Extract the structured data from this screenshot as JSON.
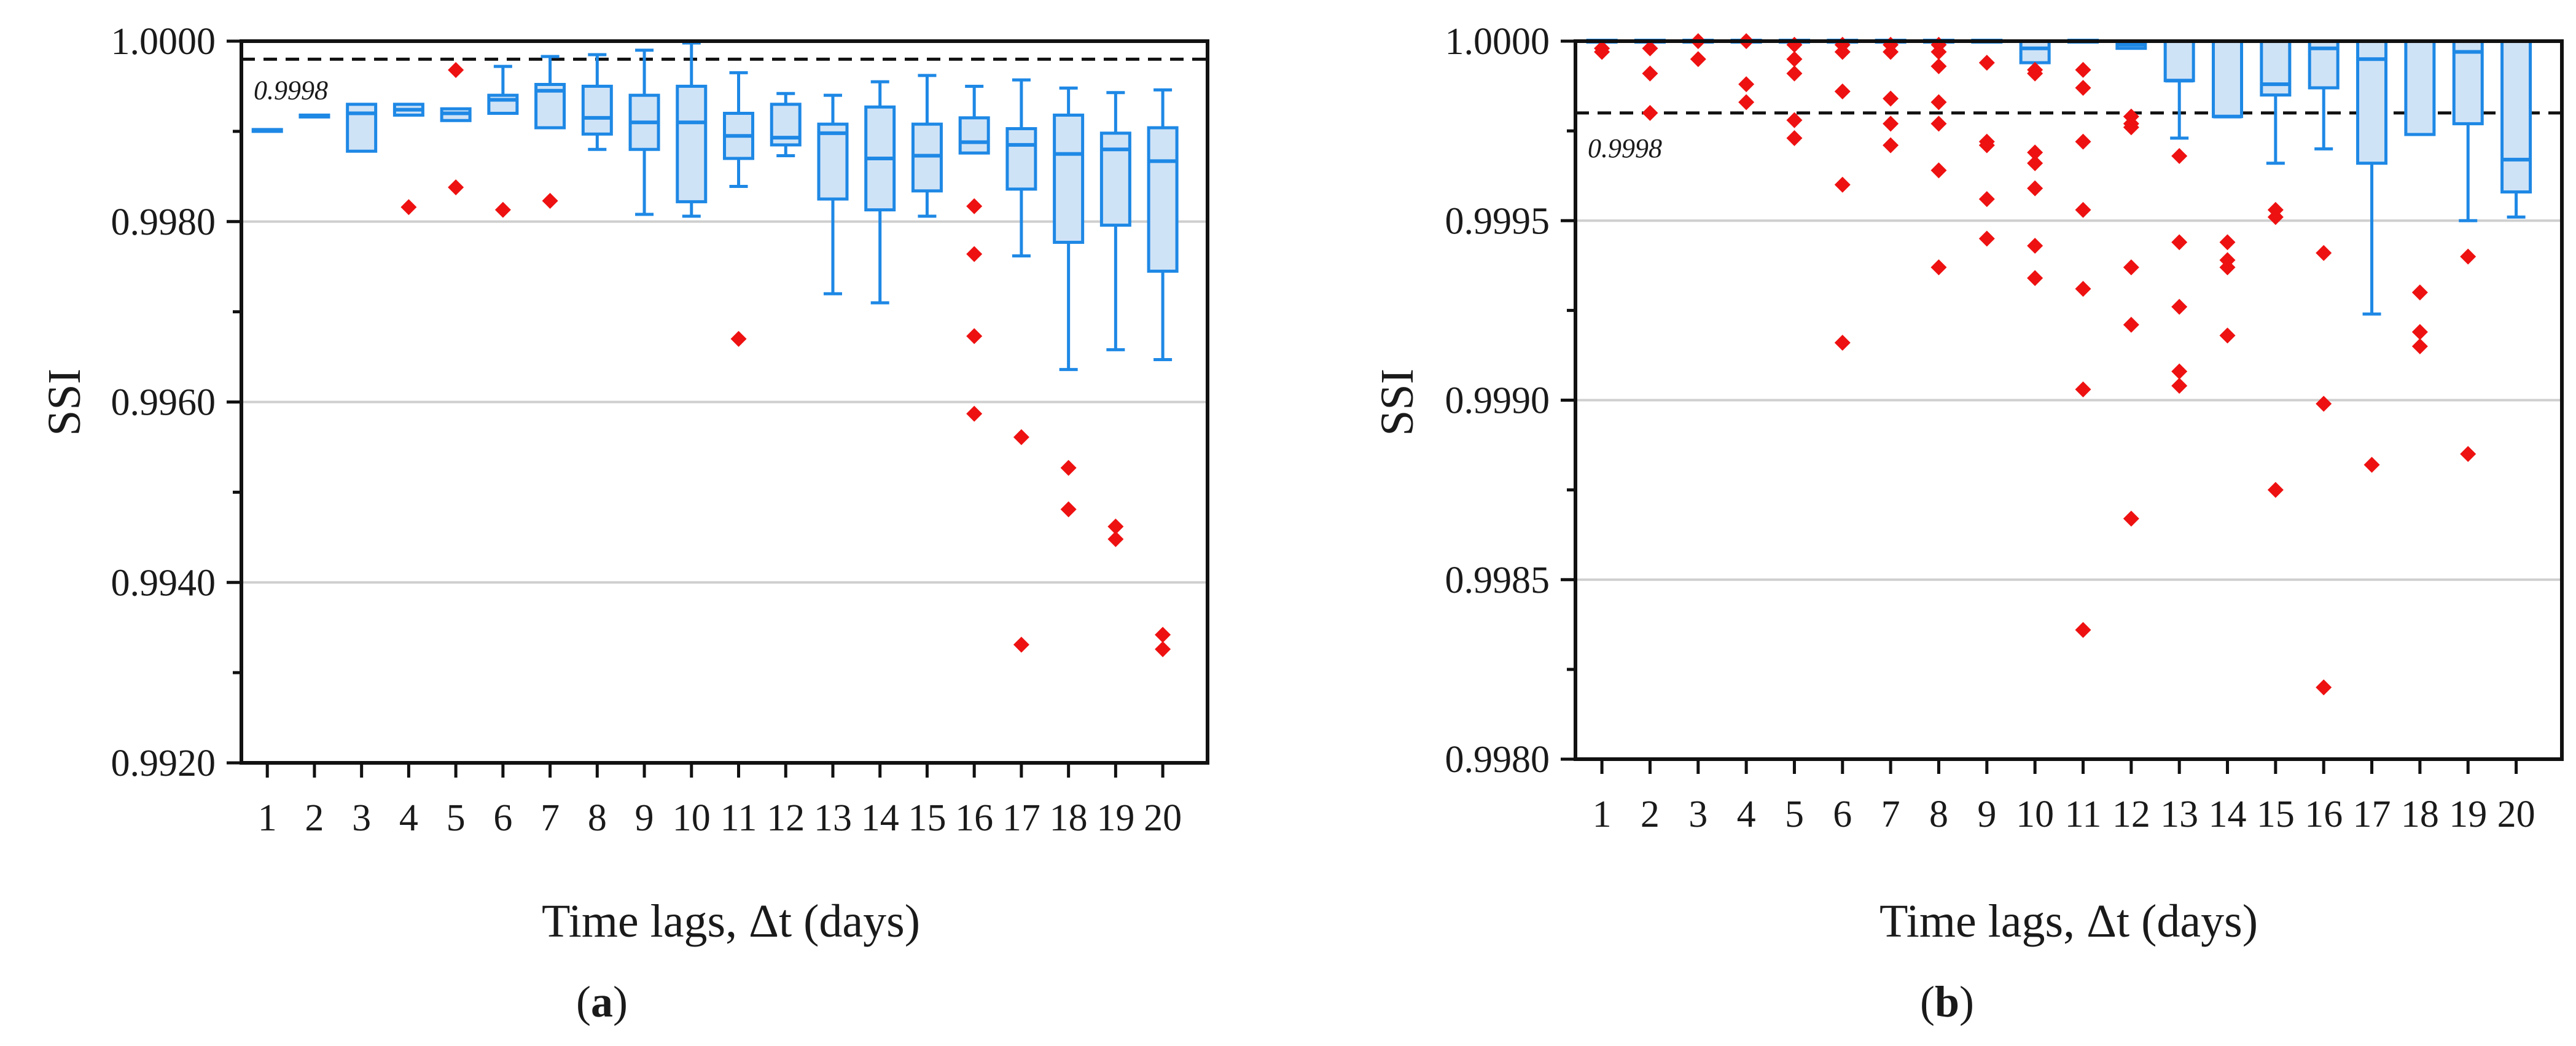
{
  "chart_data": [
    {
      "panel": "(a)",
      "type": "box",
      "ylabel": "SSI",
      "xlabel": "Time lags, Δt (days)",
      "ylim": [
        0.992,
        1.0
      ],
      "yticks": [
        "0.9920",
        "0.9940",
        "0.9960",
        "0.9980",
        "1.0000"
      ],
      "ytick_values": [
        0.992,
        0.994,
        0.996,
        0.998,
        1.0
      ],
      "reference": {
        "value": 0.9998,
        "label": "0.9998"
      },
      "categories": [
        "1",
        "2",
        "3",
        "4",
        "5",
        "6",
        "7",
        "8",
        "9",
        "10",
        "11",
        "12",
        "13",
        "14",
        "15",
        "16",
        "17",
        "18",
        "19",
        "20"
      ],
      "boxes": [
        {
          "q1": 0.99901,
          "median": 0.99901,
          "q3": 0.99901,
          "wlo": 0.99901,
          "whi": 0.99901,
          "outliers": []
        },
        {
          "q1": 0.99917,
          "median": 0.99917,
          "q3": 0.99917,
          "wlo": 0.99917,
          "whi": 0.99917,
          "outliers": []
        },
        {
          "q1": 0.99878,
          "median": 0.9992,
          "q3": 0.9993,
          "wlo": 0.99878,
          "whi": 0.9993,
          "outliers": []
        },
        {
          "q1": 0.99918,
          "median": 0.99924,
          "q3": 0.9993,
          "wlo": 0.99918,
          "whi": 0.9993,
          "outliers": [
            0.99816
          ]
        },
        {
          "q1": 0.99912,
          "median": 0.9992,
          "q3": 0.99925,
          "wlo": 0.99912,
          "whi": 0.99925,
          "outliers": [
            0.99838,
            0.99968
          ]
        },
        {
          "q1": 0.9992,
          "median": 0.99935,
          "q3": 0.9994,
          "wlo": 0.9992,
          "whi": 0.99972,
          "outliers": [
            0.99813
          ]
        },
        {
          "q1": 0.99904,
          "median": 0.99945,
          "q3": 0.99952,
          "wlo": 0.99904,
          "whi": 0.99983,
          "outliers": [
            0.99823
          ]
        },
        {
          "q1": 0.99897,
          "median": 0.99915,
          "q3": 0.9995,
          "wlo": 0.9988,
          "whi": 0.99985,
          "outliers": []
        },
        {
          "q1": 0.9988,
          "median": 0.9991,
          "q3": 0.9994,
          "wlo": 0.99808,
          "whi": 0.9999,
          "outliers": []
        },
        {
          "q1": 0.99822,
          "median": 0.9991,
          "q3": 0.9995,
          "wlo": 0.99806,
          "whi": 0.99998,
          "outliers": []
        },
        {
          "q1": 0.9987,
          "median": 0.99895,
          "q3": 0.9992,
          "wlo": 0.99839,
          "whi": 0.99965,
          "outliers": [
            0.9967
          ]
        },
        {
          "q1": 0.99885,
          "median": 0.99893,
          "q3": 0.9993,
          "wlo": 0.99873,
          "whi": 0.99942,
          "outliers": []
        },
        {
          "q1": 0.99825,
          "median": 0.99898,
          "q3": 0.99908,
          "wlo": 0.9972,
          "whi": 0.9994,
          "outliers": []
        },
        {
          "q1": 0.99813,
          "median": 0.9987,
          "q3": 0.99927,
          "wlo": 0.9971,
          "whi": 0.99955,
          "outliers": []
        },
        {
          "q1": 0.99834,
          "median": 0.99873,
          "q3": 0.99908,
          "wlo": 0.99806,
          "whi": 0.99962,
          "outliers": []
        },
        {
          "q1": 0.99876,
          "median": 0.99888,
          "q3": 0.99915,
          "wlo": 0.99876,
          "whi": 0.9995,
          "outliers": [
            0.99817,
            0.99764,
            0.99673,
            0.99587
          ]
        },
        {
          "q1": 0.99836,
          "median": 0.99885,
          "q3": 0.99903,
          "wlo": 0.99762,
          "whi": 0.99957,
          "outliers": [
            0.99561,
            0.99331
          ]
        },
        {
          "q1": 0.99777,
          "median": 0.99875,
          "q3": 0.99918,
          "wlo": 0.99636,
          "whi": 0.99948,
          "outliers": [
            0.99527,
            0.99481
          ]
        },
        {
          "q1": 0.99796,
          "median": 0.9988,
          "q3": 0.99898,
          "wlo": 0.99658,
          "whi": 0.99943,
          "outliers": [
            0.99462,
            0.99448
          ]
        },
        {
          "q1": 0.99745,
          "median": 0.99867,
          "q3": 0.99904,
          "wlo": 0.99647,
          "whi": 0.99946,
          "outliers": [
            0.99342,
            0.99326
          ]
        }
      ]
    },
    {
      "panel": "(b)",
      "type": "box",
      "ylabel": "SSI",
      "xlabel": "Time lags, Δt (days)",
      "ylim": [
        0.998,
        1.0
      ],
      "yticks": [
        "0.9980",
        "0.9985",
        "0.9990",
        "0.9995",
        "1.0000"
      ],
      "ytick_values": [
        0.998,
        0.9985,
        0.999,
        0.9995,
        1.0
      ],
      "reference": {
        "value": 0.9998,
        "label": "0.9998"
      },
      "categories": [
        "1",
        "2",
        "3",
        "4",
        "5",
        "6",
        "7",
        "8",
        "9",
        "10",
        "11",
        "12",
        "13",
        "14",
        "15",
        "16",
        "17",
        "18",
        "19",
        "20"
      ],
      "boxes": [
        {
          "q1": 1.0,
          "median": 1.0,
          "q3": 1.0,
          "wlo": 1.0,
          "whi": 1.0,
          "outliers": [
            0.99998,
            0.99997
          ]
        },
        {
          "q1": 1.0,
          "median": 1.0,
          "q3": 1.0,
          "wlo": 1.0,
          "whi": 1.0,
          "outliers": [
            0.99998,
            0.99991,
            0.9998
          ]
        },
        {
          "q1": 1.0,
          "median": 1.0,
          "q3": 1.0,
          "wlo": 1.0,
          "whi": 1.0,
          "outliers": [
            1.0,
            0.99995
          ]
        },
        {
          "q1": 1.0,
          "median": 1.0,
          "q3": 1.0,
          "wlo": 1.0,
          "whi": 1.0,
          "outliers": [
            1.0,
            0.99988,
            0.99983
          ]
        },
        {
          "q1": 1.0,
          "median": 1.0,
          "q3": 1.0,
          "wlo": 1.0,
          "whi": 1.0,
          "outliers": [
            0.99999,
            0.99995,
            0.99991,
            0.99978,
            0.99973
          ]
        },
        {
          "q1": 1.0,
          "median": 1.0,
          "q3": 1.0,
          "wlo": 1.0,
          "whi": 1.0,
          "outliers": [
            0.99999,
            0.99997,
            0.99986,
            0.9996,
            0.99916
          ]
        },
        {
          "q1": 1.0,
          "median": 1.0,
          "q3": 1.0,
          "wlo": 1.0,
          "whi": 1.0,
          "outliers": [
            0.99999,
            0.99997,
            0.99984,
            0.99977,
            0.99971
          ]
        },
        {
          "q1": 1.0,
          "median": 1.0,
          "q3": 1.0,
          "wlo": 1.0,
          "whi": 1.0,
          "outliers": [
            0.99999,
            0.99997,
            0.99993,
            0.99983,
            0.99977,
            0.99964,
            0.99937
          ]
        },
        {
          "q1": 1.0,
          "median": 1.0,
          "q3": 1.0,
          "wlo": 1.0,
          "whi": 1.0,
          "outliers": [
            0.99994,
            0.99972,
            0.99971,
            0.99956,
            0.99945
          ]
        },
        {
          "q1": 0.99994,
          "median": 0.99998,
          "q3": 1.0,
          "wlo": 0.99994,
          "whi": 1.0,
          "outliers": [
            0.99992,
            0.99991,
            0.99969,
            0.99966,
            0.99959,
            0.99943,
            0.99934
          ]
        },
        {
          "q1": 1.0,
          "median": 1.0,
          "q3": 1.0,
          "wlo": 1.0,
          "whi": 1.0,
          "outliers": [
            0.99992,
            0.99987,
            0.99972,
            0.99953,
            0.99931,
            0.99903,
            0.99836
          ]
        },
        {
          "q1": 0.99998,
          "median": 0.99999,
          "q3": 1.0,
          "wlo": 0.99998,
          "whi": 1.0,
          "outliers": [
            0.99979,
            0.99977,
            0.99976,
            0.99937,
            0.99921,
            0.99867
          ]
        },
        {
          "q1": 0.99989,
          "median": 0.99989,
          "q3": 1.0,
          "wlo": 0.99973,
          "whi": 1.0,
          "outliers": [
            0.99968,
            0.99944,
            0.99926,
            0.99908,
            0.99904
          ]
        },
        {
          "q1": 0.99979,
          "median": 0.99979,
          "q3": 1.0,
          "wlo": 0.99979,
          "whi": 1.0,
          "outliers": [
            0.99944,
            0.99939,
            0.99937,
            0.99918
          ]
        },
        {
          "q1": 0.99985,
          "median": 0.99988,
          "q3": 1.0,
          "wlo": 0.99966,
          "whi": 1.0,
          "outliers": [
            0.99953,
            0.99951,
            0.99875
          ]
        },
        {
          "q1": 0.99987,
          "median": 0.99998,
          "q3": 1.0,
          "wlo": 0.9997,
          "whi": 1.0,
          "outliers": [
            0.99941,
            0.99899,
            0.9982
          ]
        },
        {
          "q1": 0.99966,
          "median": 0.99995,
          "q3": 1.0,
          "wlo": 0.99924,
          "whi": 1.0,
          "outliers": [
            0.99882
          ]
        },
        {
          "q1": 0.99974,
          "median": 1.0,
          "q3": 1.0,
          "wlo": 0.99974,
          "whi": 1.0,
          "outliers": [
            0.9993,
            0.99919,
            0.99915
          ]
        },
        {
          "q1": 0.99977,
          "median": 0.99997,
          "q3": 1.0,
          "wlo": 0.9995,
          "whi": 1.0,
          "outliers": [
            0.9994,
            0.99885
          ]
        },
        {
          "q1": 0.99958,
          "median": 0.99967,
          "q3": 1.0,
          "wlo": 0.99951,
          "whi": 1.0,
          "outliers": []
        }
      ]
    }
  ],
  "captions": [
    {
      "open": "(",
      "letter": "a",
      "close": ")"
    },
    {
      "open": "(",
      "letter": "b",
      "close": ")"
    }
  ]
}
